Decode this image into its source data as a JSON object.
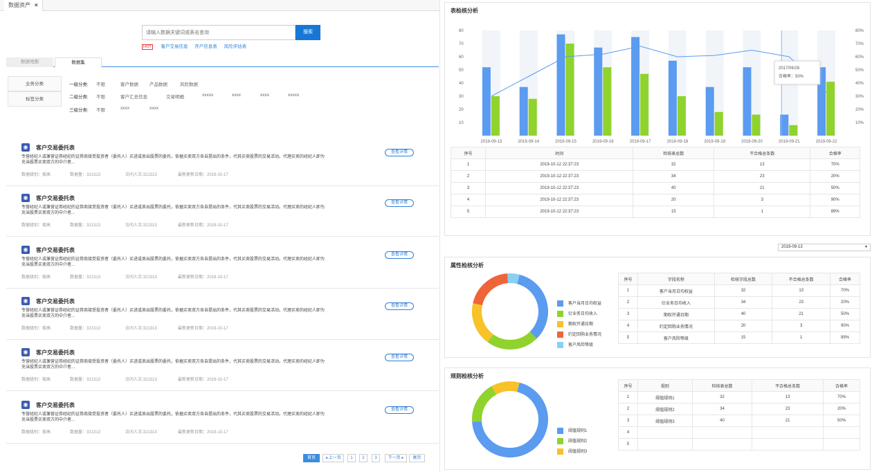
{
  "tabbar": {
    "tab_label": "数据资产",
    "close": "×"
  },
  "search": {
    "placeholder": "请输入数据关键词或表名查询",
    "button": "搜索",
    "hot": "HOT",
    "hot_links": [
      "客户交易信息",
      "开户信息表",
      "风险评估表"
    ]
  },
  "subtabs": [
    "数据地图",
    "数据集"
  ],
  "categories": [
    "业务分类",
    "标签分类"
  ],
  "filters": [
    {
      "label": "一级分类:",
      "items": [
        "不限",
        "客户数据",
        "产品数据",
        "风险数据"
      ]
    },
    {
      "label": "二级分类:",
      "items": [
        "不限",
        "客户汇总信息",
        "交易明细",
        "xxxxx",
        "xxxx",
        "xxxx",
        "xxxxx"
      ]
    },
    {
      "label": "三级分类:",
      "items": [
        "不限",
        "xxxx",
        "xxxx"
      ]
    }
  ],
  "cards": [
    {
      "title": "客户交易委托表",
      "desc": "专营经纪人或兼营证券经纪的证券商接受投资者（委托人）买进或卖出股票的委托，依据买卖双方各自提出的条件，代其买卖股票的交易活动。代理买卖的经纪人即为充当股票买卖双方的中介者...",
      "level": "数据级别：极高",
      "count": "数据量：321313",
      "visits": "访问人次:321313",
      "updated": "最新更新日期：2019-10-17",
      "detail": "查看详情"
    },
    {
      "title": "客户交易委托表",
      "desc": "专营经纪人或兼营证券经纪的证券商接受投资者（委托人）买进或卖出股票的委托，依据买卖双方各自提出的条件，代其买卖股票的交易活动。代理买卖的经纪人即为充当股票买卖双方的中介者...",
      "level": "数据级别：极高",
      "count": "数据量：321313",
      "visits": "访问人次:321313",
      "updated": "最新更新日期：2019-10-17",
      "detail": "查看详情"
    },
    {
      "title": "客户交易委托表",
      "desc": "专营经纪人或兼营证券经纪的证券商接受投资者（委托人）买进或卖出股票的委托，依据买卖双方各自提出的条件，代其买卖股票的交易活动。代理买卖的经纪人即为充当股票买卖双方的中介者...",
      "level": "数据级别：极高",
      "count": "数据量：321313",
      "visits": "访问人次:321313",
      "updated": "最新更新日期：2019-10-17",
      "detail": "查看详情"
    },
    {
      "title": "客户交易委托表",
      "desc": "专营经纪人或兼营证券经纪的证券商接受投资者（委托人）买进或卖出股票的委托，依据买卖双方各自提出的条件，代其买卖股票的交易活动。代理买卖的经纪人即为充当股票买卖双方的中介者...",
      "level": "数据级别：极高",
      "count": "数据量：321313",
      "visits": "访问人次:321313",
      "updated": "最新更新日期：2019-10-17",
      "detail": "查看详情"
    },
    {
      "title": "客户交易委托表",
      "desc": "专营经纪人或兼营证券经纪的证券商接受投资者（委托人）买进或卖出股票的委托，依据买卖双方各自提出的条件，代其买卖股票的交易活动。代理买卖的经纪人即为充当股票买卖双方的中介者...",
      "level": "数据级别：极高",
      "count": "数据量：321313",
      "visits": "访问人次:321313",
      "updated": "最新更新日期：2019-10-17",
      "detail": "查看详情"
    },
    {
      "title": "客户交易委托表",
      "desc": "专营经纪人或兼营证券经纪的证券商接受投资者（委托人）买进或卖出股票的委托，依据买卖双方各自提出的条件，代其买卖股票的交易活动。代理买卖的经纪人即为充当股票买卖双方的中介者...",
      "level": "数据级别：极高",
      "count": "数据量：321313",
      "visits": "访问人次:321313",
      "updated": "最新更新日期：2019-10-17",
      "detail": "查看详情"
    }
  ],
  "pager": [
    "首页",
    "◂ 上一页",
    "1",
    "2",
    "3",
    "下一页 ▸",
    "尾页"
  ],
  "table_panel": {
    "title": "表检核分析",
    "tooltip": {
      "date": "2017/06/28",
      "text": "合格率：50%"
    },
    "headers": [
      "序号",
      "时间",
      "检核表总数",
      "不合格总条数",
      "合格率"
    ],
    "rows": [
      [
        "1",
        "2019-10-12 22:37:23",
        "32",
        "13",
        "70%"
      ],
      [
        "2",
        "2019-10-12 22:37:23",
        "34",
        "23",
        "20%"
      ],
      [
        "3",
        "2019-10-12 22:37:23",
        "40",
        "21",
        "50%"
      ],
      [
        "4",
        "2019-10-12 22:37:23",
        "20",
        "3",
        "90%"
      ],
      [
        "5",
        "2019-10-12 22:37:23",
        "15",
        "1",
        "89%"
      ]
    ]
  },
  "chart_data": {
    "type": "bar",
    "categories": [
      "2019-09-13",
      "2019-09-14",
      "2019-09-15",
      "2019-09-16",
      "2019-09-17",
      "2019-09-18",
      "2019-09-19",
      "2019-09-20",
      "2019-09-21",
      "2019-09-22"
    ],
    "series": [
      {
        "values": [
          52,
          37,
          77,
          67,
          75,
          57,
          37,
          52,
          16,
          52
        ],
        "color": "#5b9bf0"
      },
      {
        "values": [
          30,
          28,
          70,
          52,
          47,
          30,
          18,
          16,
          8,
          41
        ],
        "color": "#8fd32c"
      },
      {
        "values": [
          30,
          45,
          60,
          62,
          68,
          60,
          61,
          65,
          60,
          33
        ],
        "color": "#5b9bf0"
      }
    ],
    "y_left_ticks": [
      "10",
      "20",
      "30",
      "40",
      "50",
      "60",
      "70",
      "80"
    ],
    "y_right_ticks": [
      "10%",
      "20%",
      "30%",
      "40%",
      "50%",
      "60%",
      "70%",
      "80%"
    ],
    "ylim": [
      0,
      80
    ],
    "y2lim": [
      0,
      80
    ]
  },
  "date_select": {
    "value": "2019-09-13"
  },
  "attr_panel": {
    "title": "属性检核分析",
    "legend": [
      "客户当月日均权益",
      "衍业务日均收入",
      "期权开通日期",
      "约定回购业务情况",
      "客户风险等级"
    ],
    "colors": [
      "#5b9bf0",
      "#8fd32c",
      "#f7c22a",
      "#f0643a",
      "#8ad0f2"
    ],
    "donut": [
      33,
      22,
      18,
      20,
      5
    ],
    "headers": [
      "序号",
      "字段名称",
      "检核字段总数",
      "不合格总条数",
      "合格率"
    ],
    "rows": [
      [
        "1",
        "客户当月日均权益",
        "32",
        "13",
        "70%"
      ],
      [
        "2",
        "衍业务日均收入",
        "34",
        "23",
        "20%"
      ],
      [
        "3",
        "期权开通日期",
        "40",
        "21",
        "50%"
      ],
      [
        "4",
        "约定回购业务情况",
        "20",
        "3",
        "90%"
      ],
      [
        "5",
        "客户风险等级",
        "15",
        "1",
        "89%"
      ]
    ]
  },
  "rule_panel": {
    "title": "规则检核分析",
    "legend": [
      "阈值规则1",
      "阈值规则2",
      "阈值规则3"
    ],
    "colors": [
      "#5b9bf0",
      "#8fd32c",
      "#f7c22a"
    ],
    "donut": [
      70,
      18,
      12
    ],
    "headers": [
      "序号",
      "规则",
      "检核表总数",
      "不合格总条数",
      "合格率"
    ],
    "rows": [
      [
        "1",
        "阈值规则1",
        "32",
        "13",
        "70%"
      ],
      [
        "2",
        "阈值规则2",
        "34",
        "23",
        "20%"
      ],
      [
        "3",
        "阈值规则3",
        "40",
        "21",
        "50%"
      ],
      [
        "4",
        "",
        "",
        "",
        ""
      ],
      [
        "5",
        "",
        "",
        "",
        ""
      ]
    ]
  }
}
